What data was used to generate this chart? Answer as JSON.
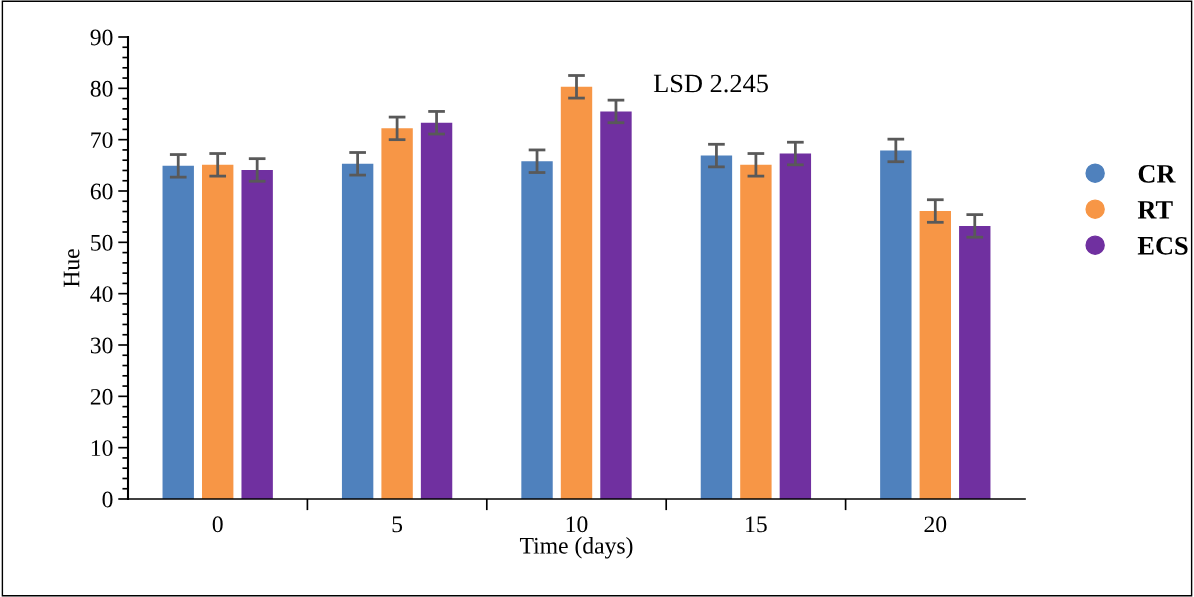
{
  "chart_data": {
    "type": "bar",
    "xlabel": "Time (days)",
    "ylabel": "Hue",
    "categories": [
      "0",
      "5",
      "10",
      "15",
      "20"
    ],
    "series": [
      {
        "name": "CR",
        "color": "#4f81bd",
        "values": [
          64.9,
          65.3,
          65.8,
          66.9,
          67.9
        ],
        "errors": [
          2.2,
          2.2,
          2.2,
          2.2,
          2.2
        ]
      },
      {
        "name": "RT",
        "color": "#f79646",
        "values": [
          65.1,
          72.2,
          80.3,
          65.1,
          56.1
        ],
        "errors": [
          2.2,
          2.2,
          2.2,
          2.2,
          2.2
        ]
      },
      {
        "name": "ECS",
        "color": "#7030a0",
        "values": [
          64.1,
          73.3,
          75.5,
          67.3,
          53.2
        ],
        "errors": [
          2.2,
          2.2,
          2.2,
          2.2,
          2.2
        ]
      }
    ],
    "ylim": [
      0,
      90
    ],
    "yticks": [
      0,
      10,
      20,
      30,
      40,
      50,
      60,
      70,
      80,
      90
    ],
    "grid": false,
    "legend": "right",
    "annotations": [
      {
        "text": "LSD 2.245",
        "x": "10",
        "y": 80.5
      }
    ]
  }
}
